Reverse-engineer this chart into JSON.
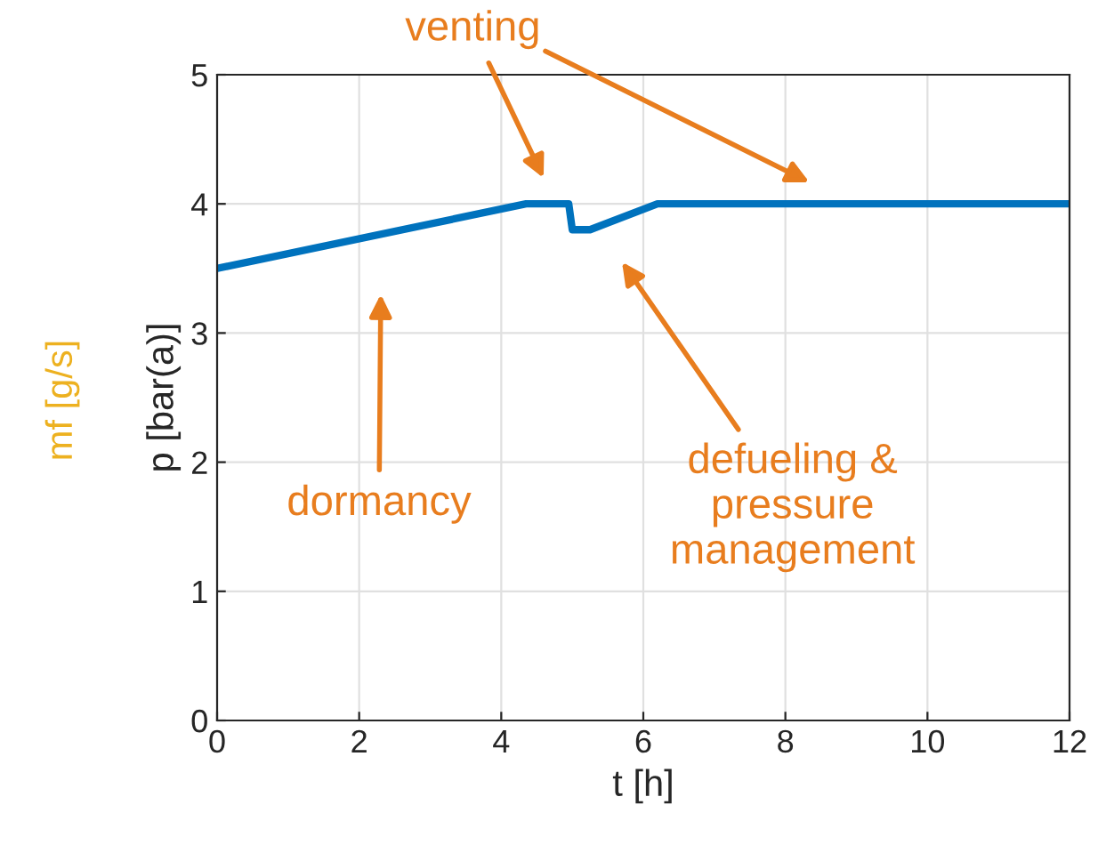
{
  "chart_data": {
    "type": "line",
    "xlabel": "t [h]",
    "ylabel": "p [bar(a)]",
    "x": [
      0,
      4.35,
      4.95,
      5.0,
      5.25,
      6.2,
      12
    ],
    "series": [
      {
        "color": "#0072bd",
        "values": [
          3.5,
          4.0,
          4.0,
          3.8,
          3.8,
          4.0,
          4.0
        ]
      }
    ],
    "xlim": [
      0,
      12
    ],
    "ylim": [
      0,
      5
    ],
    "xticks": [
      0,
      2,
      4,
      6,
      8,
      10,
      12
    ],
    "yticks": [
      0,
      1,
      2,
      3,
      4,
      5
    ],
    "grid": true,
    "marker": "none",
    "line_style": "solid",
    "annotations": [
      "venting",
      "dormancy",
      "defueling &\npressure\nmanagement",
      "mf [g/s]"
    ]
  }
}
